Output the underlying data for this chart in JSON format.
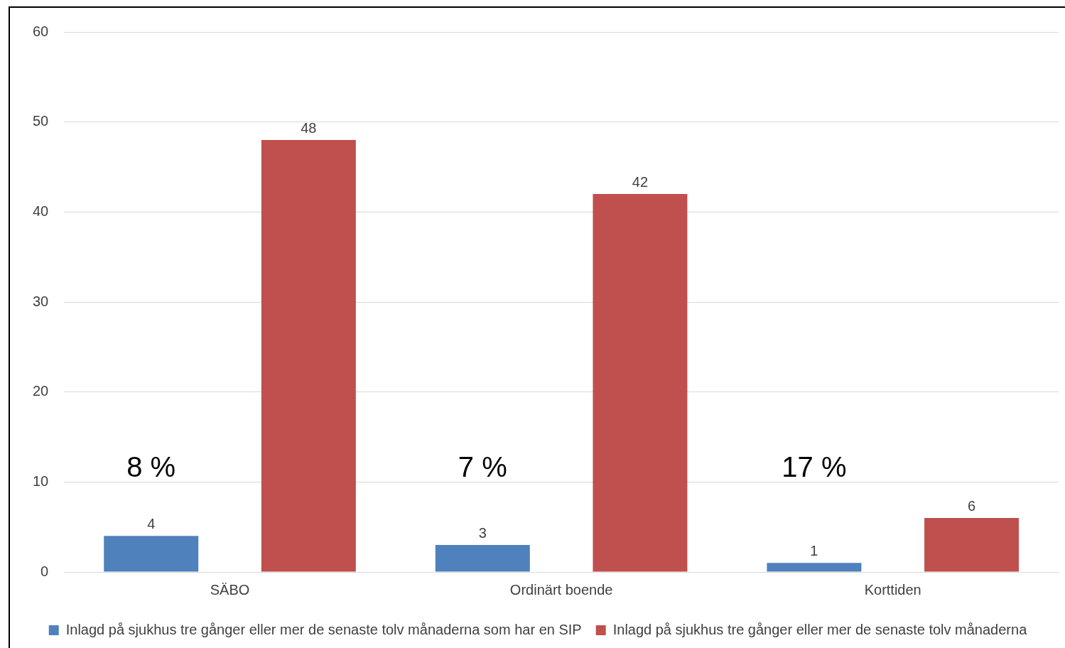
{
  "chart_data": {
    "type": "bar",
    "categories": [
      "SÄBO",
      "Ordinärt boende",
      "Korttiden"
    ],
    "series": [
      {
        "name": "Inlagd på sjukhus tre gånger eller mer de senaste tolv månaderna som har en SIP",
        "color": "#4f81bd",
        "values": [
          4,
          3,
          1
        ]
      },
      {
        "name": "Inlagd på sjukhus tre gånger eller mer de senaste tolv månaderna",
        "color": "#c0504d",
        "values": [
          48,
          42,
          6
        ]
      }
    ],
    "ylim": [
      0,
      60
    ],
    "yticks": [
      0,
      10,
      20,
      30,
      40,
      50,
      60
    ],
    "grid": "y",
    "legend": "bottom",
    "data_labels": true,
    "annotations": [
      "8 %",
      "7 %",
      "17 %"
    ]
  }
}
